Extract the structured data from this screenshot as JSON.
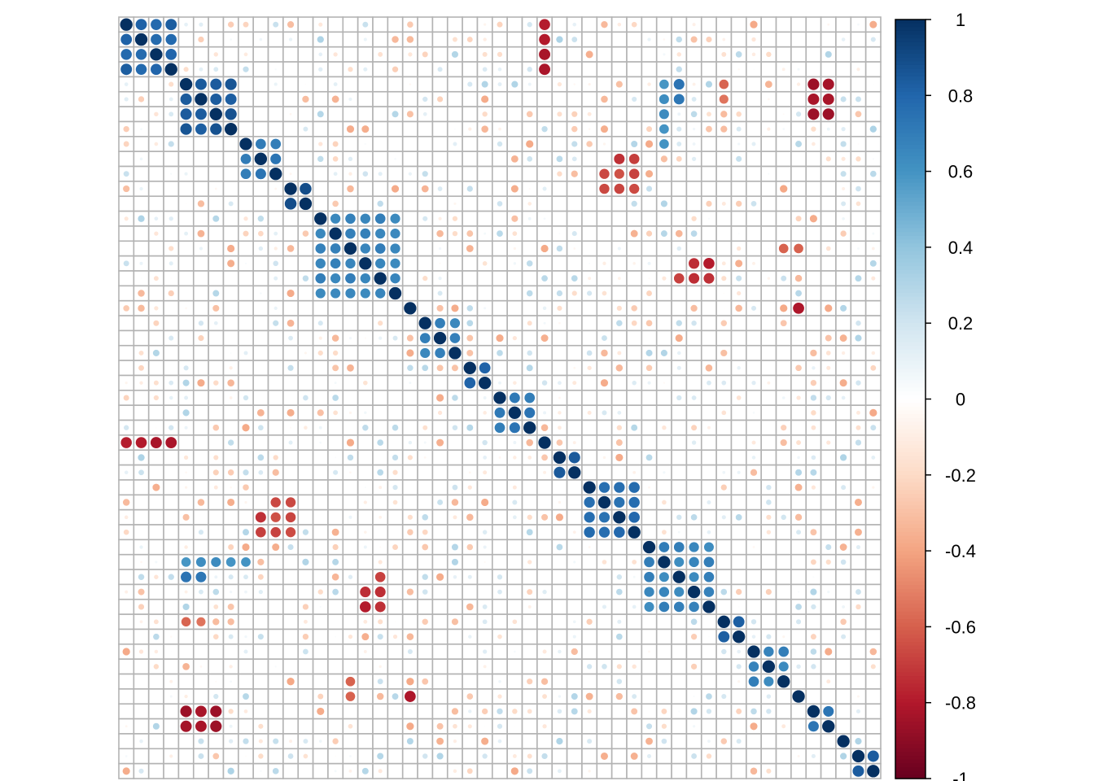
{
  "chart_data": {
    "type": "heatmap",
    "subtype": "correlation-circle-matrix",
    "size": 51,
    "grid": true,
    "legend": "right",
    "colorbar": {
      "min": -1,
      "max": 1,
      "ticks": [
        "1",
        "0.8",
        "0.6",
        "0.4",
        "0.2",
        "0",
        "-0.2",
        "-0.4",
        "-0.6",
        "-0.8",
        "-1"
      ],
      "colors": {
        "-1": "#67001F",
        "-0.8": "#B2182B",
        "-0.6": "#D6604D",
        "-0.4": "#F4A582",
        "-0.2": "#FDDBC7",
        "0": "#FFFFFF",
        "0.2": "#D1E5F0",
        "0.4": "#92C5DE",
        "0.6": "#4393C3",
        "0.8": "#2166AC",
        "1": "#053061"
      }
    },
    "grid_color": "#B3B3B3",
    "blocks": [
      {
        "rows": [
          0,
          3
        ],
        "cols": [
          0,
          3
        ],
        "value": 0.85
      },
      {
        "rows": [
          0,
          3
        ],
        "cols": [
          28,
          28
        ],
        "value": -0.85
      },
      {
        "rows": [
          4,
          7
        ],
        "cols": [
          4,
          7
        ],
        "value": 0.9
      },
      {
        "rows": [
          4,
          5
        ],
        "cols": [
          37,
          37
        ],
        "value": 0.75
      },
      {
        "rows": [
          4,
          5
        ],
        "cols": [
          46,
          47
        ],
        "value": -0.95
      },
      {
        "rows": [
          4,
          5
        ],
        "cols": [
          40,
          40
        ],
        "value": -0.6
      },
      {
        "rows": [
          8,
          10
        ],
        "cols": [
          8,
          10
        ],
        "value": 0.75
      },
      {
        "rows": [
          9,
          10
        ],
        "cols": [
          33,
          34
        ],
        "value": -0.75
      },
      {
        "rows": [
          11,
          12
        ],
        "cols": [
          11,
          12
        ],
        "value": 0.9
      },
      {
        "rows": [
          13,
          18
        ],
        "cols": [
          13,
          18
        ],
        "value": 0.7
      },
      {
        "rows": [
          16,
          17
        ],
        "cols": [
          38,
          39
        ],
        "value": -0.8
      },
      {
        "rows": [
          15,
          15
        ],
        "cols": [
          44,
          45
        ],
        "value": -0.65
      },
      {
        "rows": [
          19,
          19
        ],
        "cols": [
          19,
          19
        ],
        "value": 0.95
      },
      {
        "rows": [
          19,
          19
        ],
        "cols": [
          45,
          45
        ],
        "value": -0.85
      },
      {
        "rows": [
          20,
          22
        ],
        "cols": [
          20,
          22
        ],
        "value": 0.7
      },
      {
        "rows": [
          23,
          24
        ],
        "cols": [
          23,
          24
        ],
        "value": 0.85
      },
      {
        "rows": [
          25,
          27
        ],
        "cols": [
          25,
          27
        ],
        "value": 0.75
      },
      {
        "rows": [
          28,
          28
        ],
        "cols": [
          0,
          3
        ],
        "value": -0.85
      },
      {
        "rows": [
          29,
          30
        ],
        "cols": [
          29,
          30
        ],
        "value": 0.9
      },
      {
        "rows": [
          31,
          34
        ],
        "cols": [
          31,
          34
        ],
        "value": 0.8
      },
      {
        "rows": [
          32,
          34
        ],
        "cols": [
          10,
          11
        ],
        "value": -0.7
      },
      {
        "rows": [
          35,
          39
        ],
        "cols": [
          35,
          39
        ],
        "value": 0.7
      },
      {
        "rows": [
          37,
          39
        ],
        "cols": [
          17,
          17
        ],
        "value": -0.75
      },
      {
        "rows": [
          36,
          36
        ],
        "cols": [
          4,
          8
        ],
        "value": 0.65
      },
      {
        "rows": [
          40,
          41
        ],
        "cols": [
          40,
          41
        ],
        "value": 0.9
      },
      {
        "rows": [
          42,
          44
        ],
        "cols": [
          42,
          44
        ],
        "value": 0.7
      },
      {
        "rows": [
          45,
          45
        ],
        "cols": [
          45,
          45
        ],
        "value": 0.95
      },
      {
        "rows": [
          46,
          47
        ],
        "cols": [
          46,
          47
        ],
        "value": 0.8
      },
      {
        "rows": [
          46,
          47
        ],
        "cols": [
          4,
          6
        ],
        "value": -0.9
      },
      {
        "rows": [
          48,
          48
        ],
        "cols": [
          48,
          48
        ],
        "value": 0.95
      },
      {
        "rows": [
          49,
          50
        ],
        "cols": [
          49,
          50
        ],
        "value": 0.85
      }
    ]
  }
}
